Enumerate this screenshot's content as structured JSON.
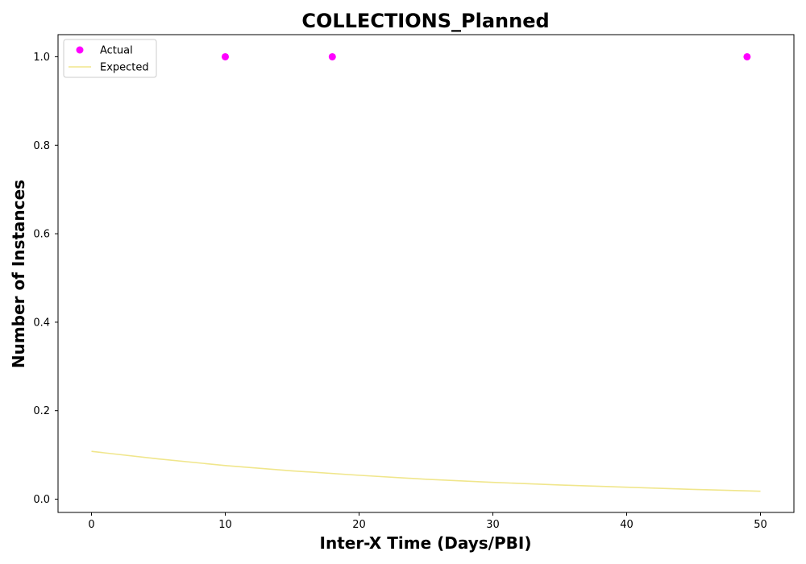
{
  "chart_data": {
    "type": "scatter",
    "title": "COLLECTIONS_Planned",
    "xlabel": "Inter-X Time (Days/PBI)",
    "ylabel": "Number of Instances",
    "xlim": [
      -2.5,
      52.5
    ],
    "ylim": [
      -0.03,
      1.05
    ],
    "xticks": [
      0,
      10,
      20,
      30,
      40,
      50
    ],
    "yticks": [
      0.0,
      0.2,
      0.4,
      0.6,
      0.8,
      1.0
    ],
    "xtick_labels": [
      "0",
      "10",
      "20",
      "30",
      "40",
      "50"
    ],
    "ytick_labels": [
      "0.0",
      "0.2",
      "0.4",
      "0.6",
      "0.8",
      "1.0"
    ],
    "legend_position": "top-left",
    "grid": false,
    "series": [
      {
        "name": "Actual",
        "kind": "scatter",
        "color": "#ff00ff",
        "x": [
          10,
          18,
          49
        ],
        "y": [
          1.0,
          1.0,
          1.0
        ]
      },
      {
        "name": "Expected",
        "kind": "line",
        "color": "#f0e68c",
        "x": [
          0,
          5,
          10,
          15,
          20,
          25,
          30,
          35,
          40,
          45,
          50
        ],
        "y": [
          0.108,
          0.091,
          0.076,
          0.064,
          0.054,
          0.045,
          0.038,
          0.032,
          0.027,
          0.022,
          0.018
        ]
      }
    ]
  }
}
